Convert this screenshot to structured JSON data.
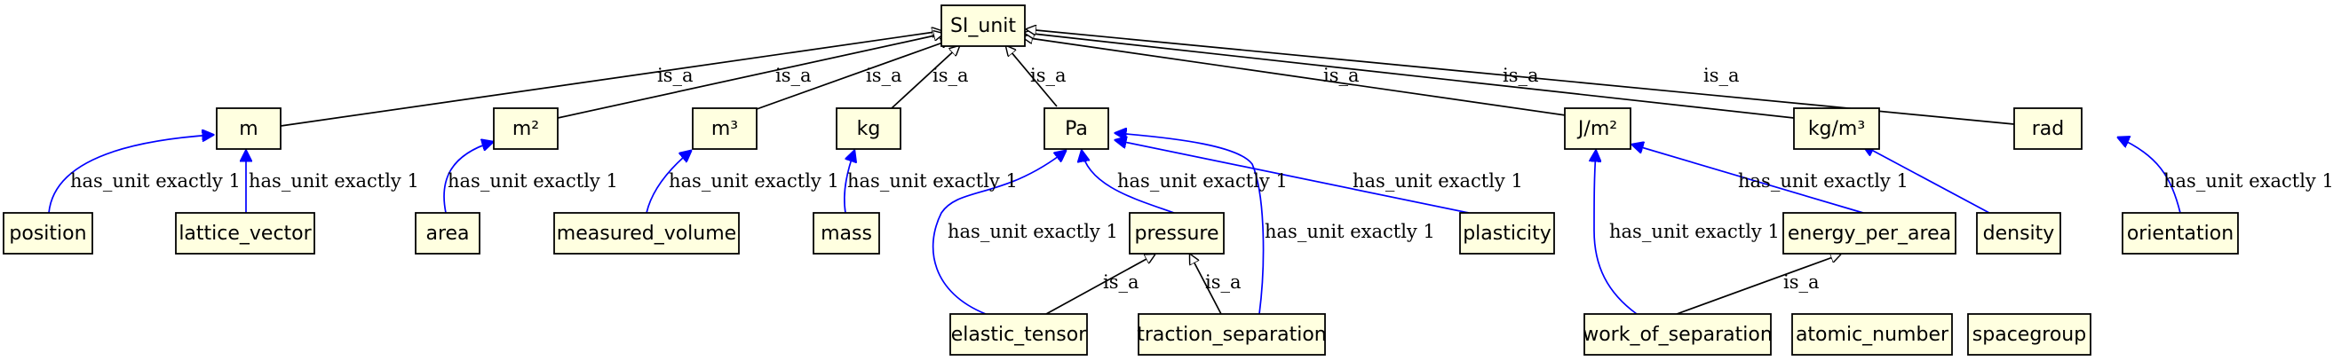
{
  "nodes": {
    "si_unit": "SI_unit",
    "m": "m",
    "m2": "m²",
    "m3": "m³",
    "kg": "kg",
    "pa": "Pa",
    "jm2": "J/m²",
    "kgm3": "kg/m³",
    "rad": "rad",
    "position": "position",
    "lattice_vector": "lattice_vector",
    "area": "area",
    "measured_volume": "measured_volume",
    "mass": "mass",
    "pressure": "pressure",
    "plasticity": "plasticity",
    "energy_per_area": "energy_per_area",
    "density": "density",
    "orientation": "orientation",
    "elastic_tensor": "elastic_tensor",
    "traction_separation": "traction_separation",
    "work_of_separation": "work_of_separation",
    "atomic_number": "atomic_number",
    "spacegroup": "spacegroup"
  },
  "relations": {
    "is_a": "is_a",
    "has_unit": "has_unit exactly 1"
  },
  "colors": {
    "node_fill": "#ffffe0",
    "is_a_edge": "#000000",
    "has_unit_edge": "#0000ff"
  }
}
